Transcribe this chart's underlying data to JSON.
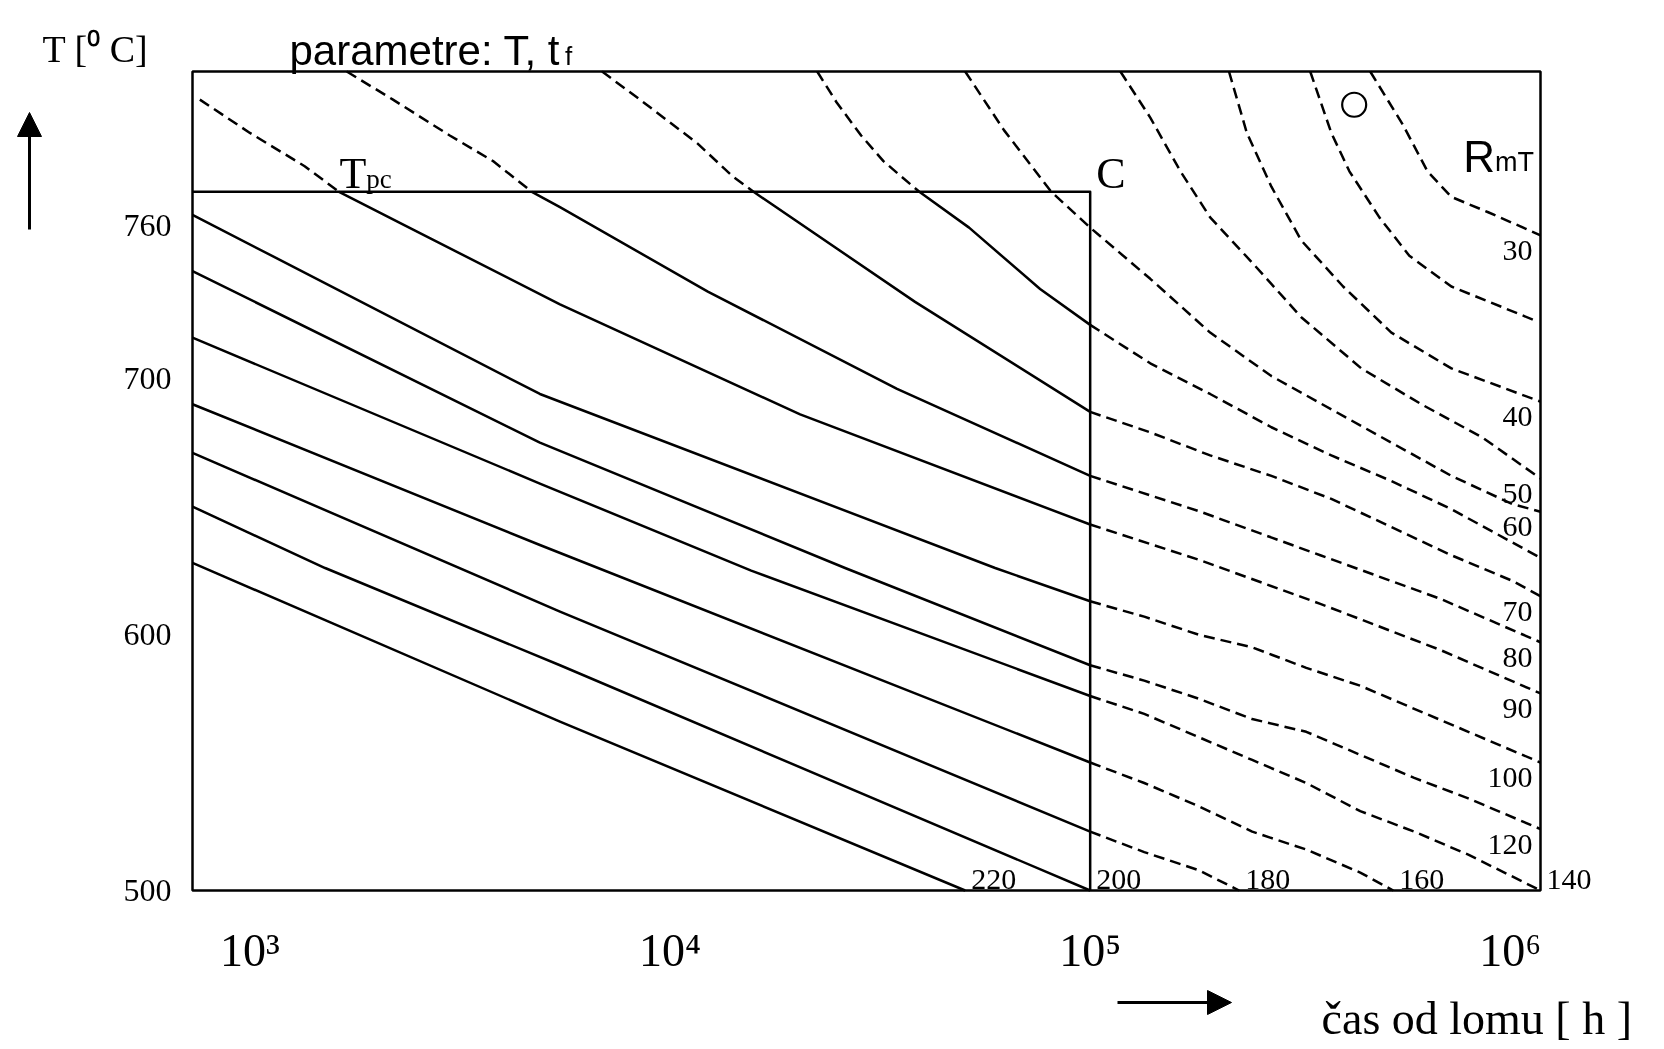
{
  "chart_data": {
    "type": "line",
    "title": "parametre: T, t$_{f}$",
    "xlabel": "čas od lomu [ h ]",
    "ylabel": "T [⁰ C]",
    "annotations": [
      {
        "text": "T$_{pc}$",
        "x": 1580,
        "y": 773
      },
      {
        "text": "C",
        "x": 100000,
        "y": 773
      },
      "R$_{mT}$"
    ],
    "log": "x",
    "xlim": [
      730,
      1180000
    ],
    "ylim": [
      500,
      820
    ],
    "xticks": [
      {
        "value": 1000,
        "label": "10³"
      },
      {
        "value": 10000,
        "label": "10⁴"
      },
      {
        "value": 100000,
        "label": "10⁵"
      },
      {
        "value": 1000000,
        "label": "10⁶"
      }
    ],
    "yticks": [
      500,
      600,
      700,
      760
    ],
    "series": [
      {
        "color": "#000000",
        "line_style": "solid",
        "x": [
          730,
          100000,
          100000
        ],
        "values": [
          773,
          773,
          500
        ]
      },
      {
        "name": "30",
        "color": "#000000",
        "line_style": "dashed",
        "x": [
          464000,
          556000,
          635000,
          724000,
          886000,
          1180000
        ],
        "values": [
          820,
          799,
          781,
          771,
          765,
          756
        ]
      },
      {
        "color": "#000000",
        "line_style": "dashed",
        "x": [
          334000,
          375000,
          414000,
          488000,
          575000,
          724000,
          1134000
        ],
        "values": [
          820,
          796,
          781,
          763,
          748,
          736,
          723
        ]
      },
      {
        "name": "40",
        "color": "#000000",
        "line_style": "dashed",
        "x": [
          214000,
          236000,
          270000,
          318000,
          400000,
          521000,
          724000,
          1180000
        ],
        "values": [
          820,
          796,
          775,
          754,
          736,
          718,
          704,
          691
        ]
      },
      {
        "name": "50",
        "color": "#000000",
        "line_style": "dashed",
        "x": [
          118000,
          139000,
          164000,
          193000,
          244000,
          318000,
          442000,
          614000,
          858000,
          1180000
        ],
        "values": [
          820,
          802,
          781,
          763,
          745,
          724,
          704,
          690,
          677,
          661
        ]
      },
      {
        "name": "60",
        "color": "#000000",
        "line_style": "dashed",
        "x": [
          50400,
          62400,
          80800,
          100000,
          139000,
          193000,
          270000,
          375000,
          521000,
          724000,
          1011000,
          1180000
        ],
        "values": [
          820,
          797,
          773,
          759,
          739,
          718,
          701,
          688,
          675,
          662,
          651,
          648
        ]
      },
      {
        "color": "#000000",
        "line_style": "dashed",
        "x": [
          22400,
          24900,
          28500,
          32200,
          35500,
          39200
        ],
        "values": [
          820,
          808,
          795,
          785,
          779,
          773
        ]
      },
      {
        "color": "#000000",
        "line_style": "solid",
        "x": [
          39200,
          51500,
          76000,
          100000
        ],
        "values": [
          773,
          759,
          735,
          721
        ]
      },
      {
        "color": "#000000",
        "line_style": "dashed",
        "x": [
          100000,
          139000,
          193000,
          270000,
          375000,
          521000,
          724000,
          1011000,
          1180000
        ],
        "values": [
          721,
          706,
          694,
          681,
          670,
          660,
          649,
          636,
          630
        ]
      },
      {
        "color": "#000000",
        "line_style": "dashed",
        "x": [
          6890,
          8480,
          11600,
          14100,
          15800
        ],
        "values": [
          820,
          809,
          792,
          779,
          773
        ]
      },
      {
        "color": "#000000",
        "line_style": "solid",
        "x": [
          15800,
          38300,
          100000
        ],
        "values": [
          773,
          730,
          687
        ]
      },
      {
        "name": "70",
        "color": "#000000",
        "line_style": "dashed",
        "x": [
          100000,
          139000,
          193000,
          270000,
          375000,
          521000,
          724000,
          1011000,
          1180000
        ],
        "values": [
          687,
          679,
          670,
          662,
          653,
          642,
          631,
          621,
          615
        ]
      },
      {
        "color": "#000000",
        "line_style": "dashed",
        "x": [
          1700,
          2190,
          2990,
          3790,
          4690
        ],
        "values": [
          820,
          809,
          795,
          785,
          773
        ]
      },
      {
        "color": "#000000",
        "line_style": "solid",
        "x": [
          4690,
          5470,
          12300,
          34700,
          100000
        ],
        "values": [
          773,
          767,
          734,
          696,
          662
        ]
      },
      {
        "name": "80",
        "color": "#000000",
        "line_style": "dashed",
        "x": [
          100000,
          183000,
          353000,
          681000,
          1180000
        ],
        "values": [
          662,
          648,
          631,
          614,
          597
        ]
      },
      {
        "color": "#000000",
        "line_style": "dashed",
        "x": [
          760,
          1000,
          1350,
          1630
        ],
        "values": [
          809,
          796,
          783,
          773
        ]
      },
      {
        "color": "#000000",
        "line_style": "solid",
        "x": [
          1630,
          2330,
          5470,
          20400,
          100000
        ],
        "values": [
          773,
          760,
          729,
          686,
          643
        ]
      },
      {
        "name": "90",
        "color": "#000000",
        "line_style": "dashed",
        "x": [
          100000,
          183000,
          353000,
          681000,
          1180000
        ],
        "values": [
          643,
          629,
          612,
          594,
          577
        ]
      },
      {
        "color": "#000000",
        "line_style": "solid",
        "x": [
          730,
          4900,
          59400,
          100000
        ],
        "values": [
          764,
          694,
          626,
          613
        ]
      },
      {
        "name": "100",
        "color": "#000000",
        "line_style": "dashed",
        "x": [
          100000,
          134500,
          180800,
          243000,
          326900,
          439400,
          590600,
          794300,
          1180000
        ],
        "values": [
          613,
          607,
          600,
          595,
          587,
          580,
          571,
          562,
          550
        ]
      },
      {
        "color": "#000000",
        "line_style": "solid",
        "x": [
          730,
          4900,
          26100,
          100000
        ],
        "values": [
          742,
          675,
          626,
          588
        ]
      },
      {
        "name": "120",
        "color": "#000000",
        "line_style": "dashed",
        "x": [
          100000,
          134500,
          180800,
          243000,
          326900,
          439400,
          590600,
          794300,
          1180000
        ],
        "values": [
          588,
          582,
          575,
          567,
          562,
          553,
          544,
          536,
          524
        ]
      },
      {
        "color": "#000000",
        "line_style": "solid",
        "x": [
          730,
          4900,
          15600,
          100000
        ],
        "values": [
          716,
          659,
          625,
          576
        ]
      },
      {
        "name": "140",
        "color": "#000000",
        "line_style": "dashed",
        "x": [
          100000,
          134500,
          180800,
          243000,
          326900,
          439400,
          590600,
          794300,
          1180000
        ],
        "values": [
          576,
          569,
          560,
          551,
          542,
          531,
          523,
          514,
          500
        ]
      },
      {
        "color": "#000000",
        "line_style": "solid",
        "x": [
          730,
          4900,
          100000
        ],
        "values": [
          690,
          635,
          550
        ]
      },
      {
        "name": "160",
        "color": "#000000",
        "line_style": "dashed",
        "x": [
          100000,
          134500,
          180800,
          243000,
          326900,
          439400,
          526500
        ],
        "values": [
          550,
          542,
          533,
          523,
          516,
          507,
          500
        ]
      },
      {
        "color": "#000000",
        "line_style": "solid",
        "x": [
          730,
          5470,
          100000
        ],
        "values": [
          671,
          609,
          523
        ]
      },
      {
        "name": "180",
        "color": "#000000",
        "line_style": "dashed",
        "x": [
          100000,
          134500,
          180800,
          226300
        ],
        "values": [
          523,
          515,
          508,
          500
        ]
      },
      {
        "name": "200",
        "color": "#000000",
        "line_style": "solid",
        "x": [
          730,
          1510,
          5470,
          100000
        ],
        "values": [
          650,
          626,
          588,
          500
        ]
      },
      {
        "name": "220",
        "color": "#000000",
        "line_style": "solid",
        "x": [
          730,
          5470,
          50400
        ],
        "values": [
          628,
          566,
          500
        ]
      },
      {
        "type": "scatter",
        "marker": "circle",
        "color": "#000000",
        "x": [
          425000
        ],
        "values": [
          807
        ]
      }
    ]
  }
}
